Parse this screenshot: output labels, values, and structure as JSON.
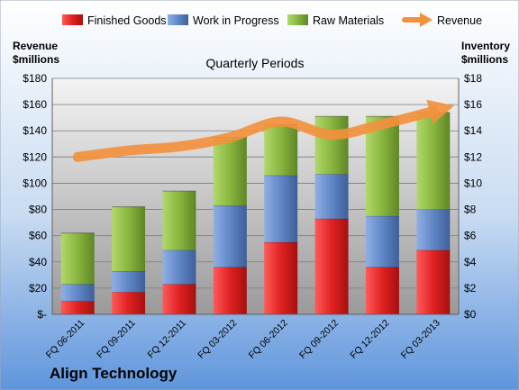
{
  "chart_data": {
    "type": "bar",
    "stacked": true,
    "title": "Quarterly Periods",
    "company": "Align Technology",
    "categories": [
      "FQ 06-2011",
      "FQ 09-2011",
      "FQ 12-2011",
      "FQ 03-2012",
      "FQ 06-2012",
      "FQ 09-2012",
      "FQ 12-2012",
      "FQ 03-2013"
    ],
    "series": [
      {
        "name": "Finished Goods",
        "color": "#e02121",
        "values": [
          1.0,
          1.7,
          2.3,
          3.6,
          5.5,
          7.3,
          3.6,
          4.9
        ]
      },
      {
        "name": "Work in Progress",
        "color": "#5f86c6",
        "values": [
          1.3,
          1.6,
          2.6,
          4.7,
          5.1,
          3.4,
          3.9,
          3.1
        ]
      },
      {
        "name": "Raw Materials",
        "color": "#88b63e",
        "values": [
          3.9,
          4.9,
          4.5,
          5.2,
          3.9,
          4.4,
          7.6,
          7.4
        ]
      }
    ],
    "line_series": {
      "name": "Revenue",
      "color": "#f2913d",
      "values": [
        120,
        125,
        128,
        135,
        147,
        137,
        145,
        155
      ]
    },
    "left_axis": {
      "label": "Revenue\n$millions",
      "range": [
        0,
        180
      ],
      "step": 20,
      "tick_labels": [
        "$-",
        "$20",
        "$40",
        "$60",
        "$80",
        "$100",
        "$120",
        "$140",
        "$160",
        "$180"
      ]
    },
    "right_axis": {
      "label": "Inventory\n$millions",
      "range": [
        0,
        18
      ],
      "step": 2,
      "tick_labels": [
        "$0",
        "$2",
        "$4",
        "$6",
        "$8",
        "$10",
        "$12",
        "$14",
        "$16",
        "$18"
      ]
    },
    "legend": {
      "position": "top"
    },
    "grid": true
  }
}
